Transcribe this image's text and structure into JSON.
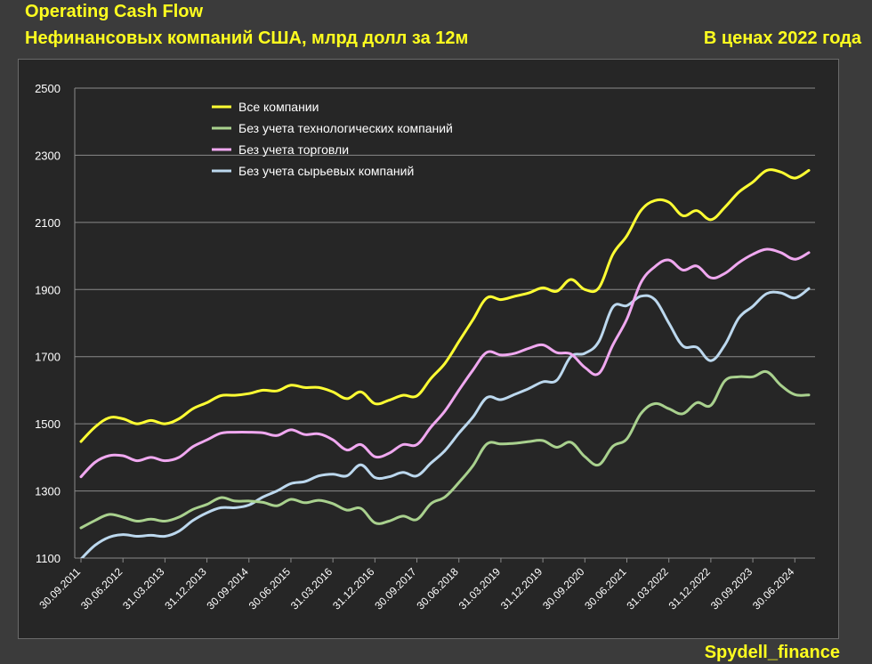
{
  "header": {
    "title": "Operating Cash Flow",
    "subtitle": "Нефинансовых компаний США, млрд долл за 12м",
    "price_basis": "В ценах 2022 года"
  },
  "footer": {
    "credit": "Spydell_finance"
  },
  "colors": {
    "background": "#3b3b3b",
    "plot_background": "#262626",
    "title": "#ffff1f",
    "all": "#ffff33",
    "ex_tech": "#a9d18e",
    "ex_trade": "#f0a8f0",
    "ex_raw": "#bcd8ee"
  },
  "chart_data": {
    "type": "line",
    "title": "Operating Cash Flow",
    "xlabel": "",
    "ylabel": "",
    "ylim": [
      1100,
      2500
    ],
    "yticks": [
      "1100",
      "1300",
      "1500",
      "1700",
      "1900",
      "2100",
      "2300",
      "2500"
    ],
    "xtick_labels": [
      "30.09.2011",
      "30.06.2012",
      "31.03.2013",
      "31.12.2013",
      "30.09.2014",
      "30.06.2015",
      "31.03.2016",
      "31.12.2016",
      "30.09.2017",
      "30.06.2018",
      "31.03.2019",
      "31.12.2019",
      "30.09.2020",
      "30.06.2021",
      "31.03.2022",
      "31.12.2022",
      "30.09.2023",
      "30.06.2024"
    ],
    "grid": true,
    "legend_position": "top-left",
    "x": [
      "Q3 2011",
      "Q4 2011",
      "Q1 2012",
      "Q2 2012",
      "Q3 2012",
      "Q4 2012",
      "Q1 2013",
      "Q2 2013",
      "Q3 2013",
      "Q4 2013",
      "Q1 2014",
      "Q2 2014",
      "Q3 2014",
      "Q4 2014",
      "Q1 2015",
      "Q2 2015",
      "Q3 2015",
      "Q4 2015",
      "Q1 2016",
      "Q2 2016",
      "Q3 2016",
      "Q4 2016",
      "Q1 2017",
      "Q2 2017",
      "Q3 2017",
      "Q4 2017",
      "Q1 2018",
      "Q2 2018",
      "Q3 2018",
      "Q4 2018",
      "Q1 2019",
      "Q2 2019",
      "Q3 2019",
      "Q4 2019",
      "Q1 2020",
      "Q2 2020",
      "Q3 2020",
      "Q4 2020",
      "Q1 2021",
      "Q2 2021",
      "Q3 2021",
      "Q4 2021",
      "Q1 2022",
      "Q2 2022",
      "Q3 2022",
      "Q4 2022",
      "Q1 2023",
      "Q2 2023",
      "Q3 2023",
      "Q4 2023",
      "Q1 2024",
      "Q2 2024",
      "Q3 2024"
    ],
    "series": [
      {
        "name": "Все компании",
        "color_key": "all",
        "values": [
          1447,
          1490,
          1518,
          1515,
          1500,
          1510,
          1500,
          1515,
          1545,
          1563,
          1584,
          1585,
          1590,
          1600,
          1598,
          1615,
          1608,
          1608,
          1595,
          1575,
          1595,
          1560,
          1570,
          1585,
          1583,
          1635,
          1680,
          1745,
          1810,
          1875,
          1870,
          1880,
          1890,
          1905,
          1895,
          1930,
          1900,
          1905,
          2005,
          2060,
          2135,
          2165,
          2160,
          2120,
          2135,
          2108,
          2145,
          2190,
          2220,
          2255,
          2250,
          2232,
          2255
        ]
      },
      {
        "name": "Без учета технологических компаний",
        "color_key": "ex_tech",
        "values": [
          1190,
          1212,
          1230,
          1222,
          1210,
          1216,
          1210,
          1222,
          1245,
          1260,
          1280,
          1270,
          1270,
          1266,
          1256,
          1275,
          1265,
          1272,
          1262,
          1243,
          1248,
          1205,
          1210,
          1225,
          1215,
          1262,
          1282,
          1325,
          1375,
          1440,
          1440,
          1442,
          1447,
          1450,
          1430,
          1445,
          1402,
          1378,
          1433,
          1455,
          1530,
          1560,
          1545,
          1530,
          1563,
          1555,
          1628,
          1640,
          1640,
          1655,
          1615,
          1587,
          1586
        ]
      },
      {
        "name": "Без учета торговли",
        "color_key": "ex_trade",
        "values": [
          1342,
          1385,
          1405,
          1405,
          1390,
          1400,
          1390,
          1400,
          1432,
          1452,
          1472,
          1475,
          1475,
          1473,
          1465,
          1482,
          1468,
          1470,
          1452,
          1422,
          1438,
          1402,
          1412,
          1438,
          1438,
          1490,
          1538,
          1600,
          1660,
          1713,
          1705,
          1710,
          1725,
          1735,
          1712,
          1708,
          1668,
          1650,
          1735,
          1812,
          1920,
          1968,
          1988,
          1958,
          1970,
          1935,
          1948,
          1980,
          2005,
          2020,
          2010,
          1990,
          2010
        ]
      },
      {
        "name": "Без учета сырьевых компаний",
        "color_key": "ex_raw",
        "values": [
          1097,
          1138,
          1162,
          1170,
          1165,
          1168,
          1165,
          1180,
          1212,
          1235,
          1250,
          1250,
          1258,
          1282,
          1300,
          1322,
          1328,
          1345,
          1350,
          1345,
          1378,
          1340,
          1342,
          1355,
          1345,
          1383,
          1420,
          1472,
          1520,
          1578,
          1572,
          1588,
          1605,
          1625,
          1630,
          1700,
          1710,
          1745,
          1848,
          1852,
          1880,
          1870,
          1800,
          1732,
          1728,
          1688,
          1735,
          1815,
          1850,
          1888,
          1890,
          1875,
          1903
        ]
      }
    ]
  }
}
